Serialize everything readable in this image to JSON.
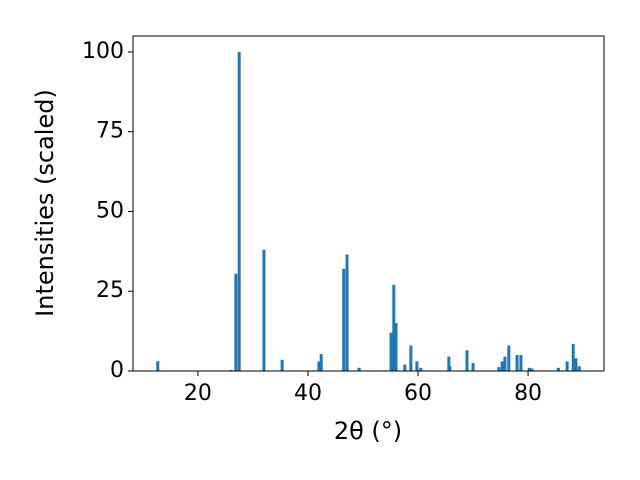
{
  "chart_data": {
    "type": "bar",
    "x_label": "2θ (°)",
    "y_label": "Intensities (scaled)",
    "x": [
      12.7,
      26.0,
      26.9,
      27.5,
      32.0,
      35.3,
      42.0,
      42.4,
      46.5,
      47.1,
      49.3,
      55.1,
      55.6,
      56.0,
      57.6,
      58.7,
      59.8,
      60.5,
      65.6,
      65.8,
      68.9,
      70.0,
      74.7,
      75.3,
      75.8,
      76.5,
      78.0,
      78.7,
      80.2,
      80.7,
      85.5,
      87.1,
      88.2,
      88.7,
      89.3
    ],
    "values": [
      3.1,
      0.3,
      30.5,
      100,
      38,
      3.5,
      3,
      5.3,
      32,
      36.5,
      1,
      12,
      27,
      15,
      2,
      8,
      3,
      1,
      4.5,
      1.5,
      6.5,
      2.5,
      1.2,
      3,
      4.5,
      8,
      5,
      5,
      1,
      0.8,
      1,
      3,
      8.5,
      4,
      1.5
    ],
    "color": "#1f77b4",
    "xlim": [
      8.2,
      93.8
    ],
    "ylim": [
      0,
      105
    ],
    "xticks": [
      20,
      40,
      60,
      80
    ],
    "yticks": [
      0,
      25,
      50,
      75,
      100
    ]
  }
}
